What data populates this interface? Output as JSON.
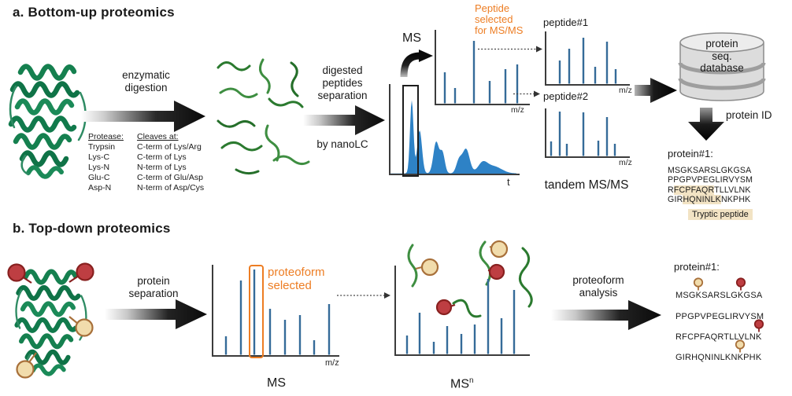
{
  "colors": {
    "orange": "#ED7D23",
    "stick": "#356B99",
    "chromatogram_fill": "#2E82C6",
    "axis": "#3C3C3C",
    "ribbon_green": "#15804F",
    "squiggle_green": "#3E8E41",
    "ptm_red": "#BE3E42",
    "ptm_red_stroke": "#88201F",
    "ptm_tan": "#F1DCAC",
    "ptm_tan_stroke": "#A8703A",
    "highlight": "#F2E3C4",
    "text": "#1A1A1A"
  },
  "section_a": {
    "title": "a. Bottom-up proteomics",
    "enzymatic_label": "enzymatic\ndigestion",
    "protease_table": {
      "headers": [
        "Protease:",
        "Cleaves at:"
      ],
      "rows": [
        [
          "Trypsin",
          "C-term of Lys/Arg"
        ],
        [
          "Lys-C",
          "C-term of Lys"
        ],
        [
          "Lys-N",
          "N-term of Lys"
        ],
        [
          "Glu-C",
          "C-term of Glu/Asp"
        ],
        [
          "Asp-N",
          "N-term of Asp/Cys"
        ]
      ]
    },
    "separation_label": "digested\npeptides\nseparation",
    "separation_sublabel": "by nanoLC",
    "chromatogram": {
      "xlabel": "t",
      "peaks": [
        [
          28,
          93,
          2.2
        ],
        [
          38,
          55,
          3
        ],
        [
          59,
          40,
          3.5
        ],
        [
          67,
          26,
          3
        ],
        [
          88,
          16,
          3.5
        ],
        [
          97,
          31,
          4.5
        ],
        [
          118,
          12,
          6
        ],
        [
          132,
          9,
          10
        ]
      ]
    },
    "ms_label": "MS",
    "ms_spectrum": {
      "xlabel": "m/z",
      "sticks": [
        [
          12,
          41
        ],
        [
          25,
          21
        ],
        [
          49,
          81
        ],
        [
          69,
          30
        ],
        [
          89,
          45
        ],
        [
          104,
          51
        ]
      ]
    },
    "selection_note": "Peptide\nselected\nfor MS/MS",
    "peptide1": {
      "label": "peptide#1",
      "xlabel": "m/z",
      "sticks": [
        [
          18,
          31
        ],
        [
          30,
          46
        ],
        [
          48,
          60
        ],
        [
          63,
          23
        ],
        [
          78,
          55
        ],
        [
          89,
          20
        ]
      ]
    },
    "peptide2": {
      "label": "peptide#2",
      "xlabel": "m/z",
      "sticks": [
        [
          7,
          20
        ],
        [
          18,
          58
        ],
        [
          27,
          17
        ],
        [
          48,
          57
        ],
        [
          67,
          21
        ],
        [
          78,
          51
        ],
        [
          88,
          17
        ]
      ]
    },
    "tandem_label": "tandem MS/MS",
    "database_label": "protein\nseq.\ndatabase",
    "protein_id_label": "protein ID",
    "result": {
      "title": "protein#1:",
      "seq_lines": [
        {
          "pre": "MSGKSARSLGKGSA",
          "hl": "",
          "post": ""
        },
        {
          "pre": "PPGPVPEGLIRVYSM",
          "hl": "",
          "post": ""
        },
        {
          "pre": "R",
          "hl": "FCPFAQR",
          "post": "TLLVLNK"
        },
        {
          "pre": "GIR",
          "hl": "HQNINLK",
          "post": "NKPHK"
        }
      ],
      "legend": "Tryptic peptide"
    }
  },
  "section_b": {
    "title": "b. Top-down proteomics",
    "separation_label": "protein\nseparation",
    "ms_spectrum": {
      "xlabel": "m/z",
      "label": "MS",
      "sticks": [
        [
          17,
          25
        ],
        [
          36,
          96
        ],
        [
          53,
          110
        ],
        [
          73,
          60
        ],
        [
          92,
          46
        ],
        [
          111,
          52
        ],
        [
          129,
          20
        ],
        [
          148,
          66
        ]
      ]
    },
    "selection_note": "proteoform\nselected",
    "msn_label_base": "MS",
    "msn_label_sup": "n",
    "msn_spectrum": {
      "sticks": [
        [
          15,
          25
        ],
        [
          31,
          54
        ],
        [
          49,
          17
        ],
        [
          66,
          37
        ],
        [
          84,
          27
        ],
        [
          101,
          39
        ],
        [
          118,
          97
        ],
        [
          135,
          47
        ],
        [
          151,
          83
        ]
      ]
    },
    "analysis_label": "proteoform\nanalysis",
    "result": {
      "title": "protein#1:",
      "seq_lines": [
        "MSGKSARSLGKGSA",
        "PPGPVPEGLIRVYSM",
        "RFCPFAQRTLLVLNK",
        "GIRHQNINLKNKPHK"
      ],
      "ptms": [
        {
          "line": 0,
          "char": 3,
          "color": "tan"
        },
        {
          "line": 0,
          "char": 10,
          "color": "red"
        },
        {
          "line": 2,
          "char": 14,
          "color": "red"
        },
        {
          "line": 3,
          "char": 11,
          "color": "tan"
        }
      ]
    }
  }
}
